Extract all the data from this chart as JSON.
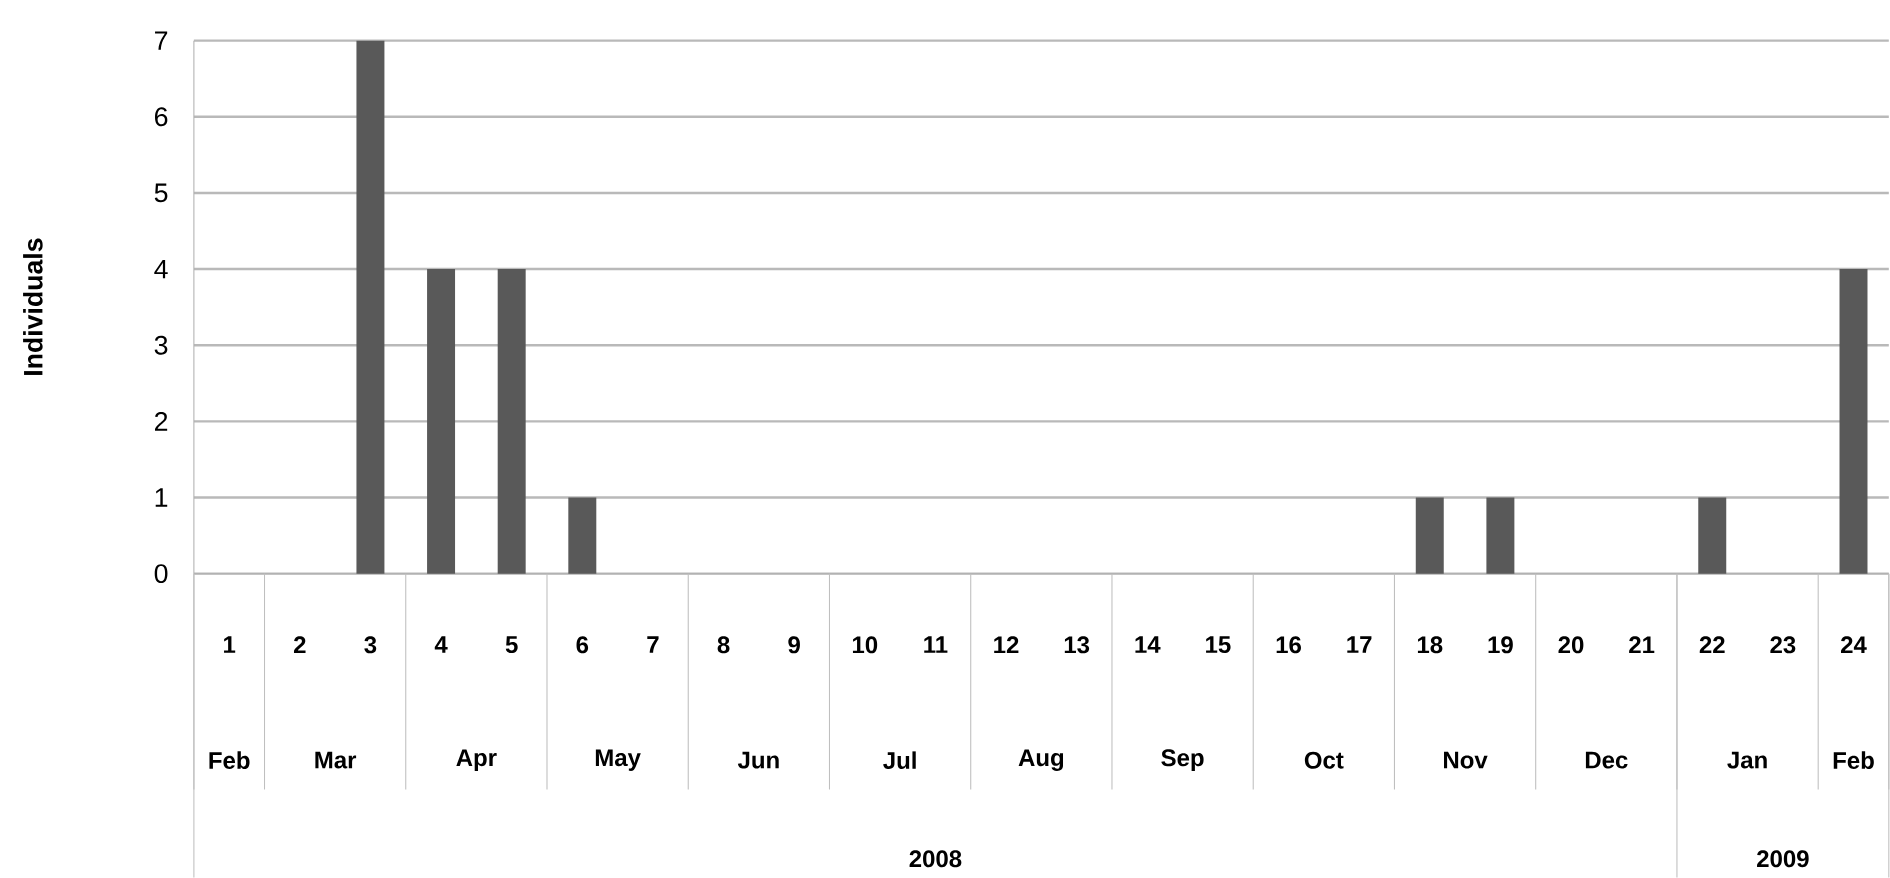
{
  "chart_data": {
    "type": "bar",
    "ylabel": "Individuals",
    "categories": [
      "1",
      "2",
      "3",
      "4",
      "5",
      "6",
      "7",
      "8",
      "9",
      "10",
      "11",
      "12",
      "13",
      "14",
      "15",
      "16",
      "17",
      "18",
      "19",
      "20",
      "21",
      "22",
      "23",
      "24"
    ],
    "values": [
      0,
      0,
      7,
      4,
      4,
      1,
      0,
      0,
      0,
      0,
      0,
      0,
      0,
      0,
      0,
      0,
      0,
      1,
      1,
      0,
      0,
      1,
      0,
      4
    ],
    "color": "#595959",
    "ylim": [
      0,
      7
    ],
    "yticks": [
      0,
      1,
      2,
      3,
      4,
      5,
      6,
      7
    ],
    "grid": "y",
    "annotations": [
      "Feb",
      "Mar",
      "Apr",
      "May",
      "Jun",
      "Jul",
      "Aug",
      "Sep",
      "Oct",
      "Nov",
      "Dec",
      "Jan",
      "Feb",
      "2008",
      "2009"
    ]
  }
}
